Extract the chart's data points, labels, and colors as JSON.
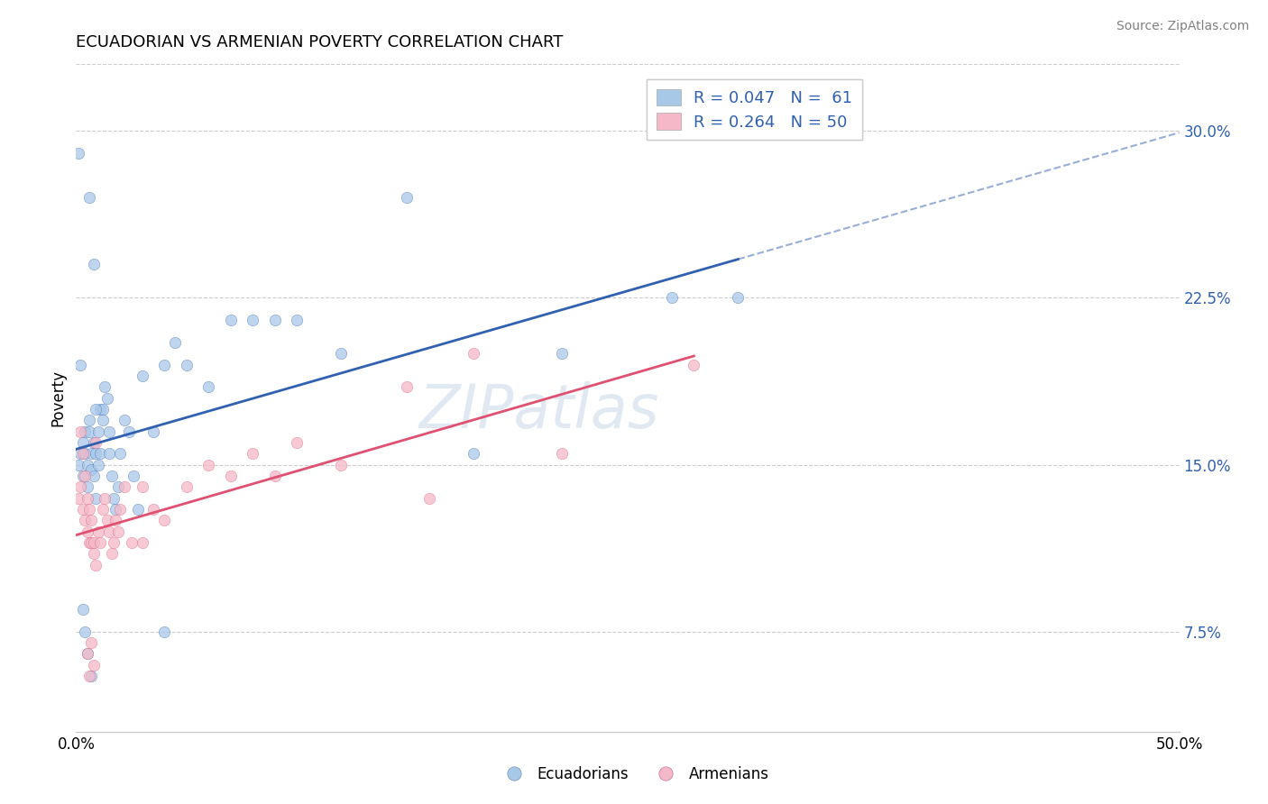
{
  "title": "ECUADORIAN VS ARMENIAN POVERTY CORRELATION CHART",
  "source": "Source: ZipAtlas.com",
  "ylabel": "Poverty",
  "ylabel_right_ticks": [
    "7.5%",
    "15.0%",
    "22.5%",
    "30.0%"
  ],
  "ylabel_right_values": [
    0.075,
    0.15,
    0.225,
    0.3
  ],
  "xlim": [
    0.0,
    0.5
  ],
  "ylim": [
    0.03,
    0.33
  ],
  "legend_r1": "R = 0.047   N =  61",
  "legend_r2": "R = 0.264   N = 50",
  "legend_label1": "Ecuadorians",
  "legend_label2": "Armenians",
  "color_blue": "#a8c8e8",
  "color_pink": "#f4b8c8",
  "color_trendline_blue": "#3060b0",
  "color_trendline_pink": "#e05070",
  "watermark_text": "ZIPatlas",
  "ecu_x": [
    0.001,
    0.002,
    0.003,
    0.003,
    0.004,
    0.004,
    0.005,
    0.005,
    0.006,
    0.006,
    0.007,
    0.007,
    0.008,
    0.008,
    0.009,
    0.009,
    0.01,
    0.01,
    0.011,
    0.011,
    0.012,
    0.012,
    0.013,
    0.014,
    0.015,
    0.015,
    0.016,
    0.017,
    0.018,
    0.019,
    0.02,
    0.022,
    0.024,
    0.026,
    0.028,
    0.03,
    0.035,
    0.04,
    0.045,
    0.05,
    0.06,
    0.07,
    0.08,
    0.09,
    0.1,
    0.12,
    0.15,
    0.18,
    0.22,
    0.27,
    0.001,
    0.002,
    0.003,
    0.004,
    0.005,
    0.006,
    0.007,
    0.008,
    0.009,
    0.3,
    0.04
  ],
  "ecu_y": [
    0.15,
    0.155,
    0.16,
    0.145,
    0.165,
    0.155,
    0.15,
    0.14,
    0.17,
    0.165,
    0.155,
    0.148,
    0.16,
    0.145,
    0.155,
    0.135,
    0.165,
    0.15,
    0.175,
    0.155,
    0.17,
    0.175,
    0.185,
    0.18,
    0.165,
    0.155,
    0.145,
    0.135,
    0.13,
    0.14,
    0.155,
    0.17,
    0.165,
    0.145,
    0.13,
    0.19,
    0.165,
    0.195,
    0.205,
    0.195,
    0.185,
    0.215,
    0.215,
    0.215,
    0.215,
    0.2,
    0.27,
    0.155,
    0.2,
    0.225,
    0.29,
    0.195,
    0.085,
    0.075,
    0.065,
    0.27,
    0.055,
    0.24,
    0.175,
    0.225,
    0.075
  ],
  "arm_x": [
    0.001,
    0.002,
    0.003,
    0.004,
    0.005,
    0.005,
    0.006,
    0.006,
    0.007,
    0.007,
    0.008,
    0.008,
    0.009,
    0.01,
    0.011,
    0.012,
    0.013,
    0.014,
    0.015,
    0.016,
    0.017,
    0.018,
    0.019,
    0.02,
    0.022,
    0.025,
    0.03,
    0.035,
    0.04,
    0.05,
    0.06,
    0.07,
    0.08,
    0.09,
    0.1,
    0.12,
    0.15,
    0.18,
    0.22,
    0.28,
    0.002,
    0.003,
    0.004,
    0.005,
    0.006,
    0.007,
    0.008,
    0.009,
    0.16,
    0.03
  ],
  "arm_y": [
    0.135,
    0.14,
    0.13,
    0.125,
    0.135,
    0.12,
    0.13,
    0.115,
    0.125,
    0.115,
    0.11,
    0.115,
    0.105,
    0.12,
    0.115,
    0.13,
    0.135,
    0.125,
    0.12,
    0.11,
    0.115,
    0.125,
    0.12,
    0.13,
    0.14,
    0.115,
    0.14,
    0.13,
    0.125,
    0.14,
    0.15,
    0.145,
    0.155,
    0.145,
    0.16,
    0.15,
    0.185,
    0.2,
    0.155,
    0.195,
    0.165,
    0.155,
    0.145,
    0.065,
    0.055,
    0.07,
    0.06,
    0.16,
    0.135,
    0.115
  ]
}
